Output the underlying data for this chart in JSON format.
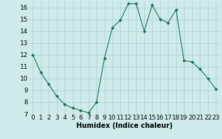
{
  "x": [
    0,
    1,
    2,
    3,
    4,
    5,
    6,
    7,
    8,
    9,
    10,
    11,
    12,
    13,
    14,
    15,
    16,
    17,
    18,
    19,
    20,
    21,
    22,
    23
  ],
  "y": [
    12,
    10.5,
    9.5,
    8.5,
    7.8,
    7.5,
    7.3,
    7.1,
    8.0,
    11.7,
    14.3,
    14.9,
    16.3,
    16.3,
    14.0,
    16.2,
    15.0,
    14.7,
    15.8,
    11.5,
    11.4,
    10.8,
    10.0,
    9.1
  ],
  "xlabel": "Humidex (Indice chaleur)",
  "ylim": [
    7,
    16.5
  ],
  "xlim": [
    -0.5,
    23.5
  ],
  "yticks": [
    7,
    8,
    9,
    10,
    11,
    12,
    13,
    14,
    15,
    16
  ],
  "xticks": [
    0,
    1,
    2,
    3,
    4,
    5,
    6,
    7,
    8,
    9,
    10,
    11,
    12,
    13,
    14,
    15,
    16,
    17,
    18,
    19,
    20,
    21,
    22,
    23
  ],
  "line_color": "#1a6b5a",
  "marker": "D",
  "marker_size": 2.0,
  "bg_color": "#ceeaea",
  "grid_color": "#aacece",
  "xlabel_fontsize": 7.0,
  "tick_fontsize": 6.5
}
